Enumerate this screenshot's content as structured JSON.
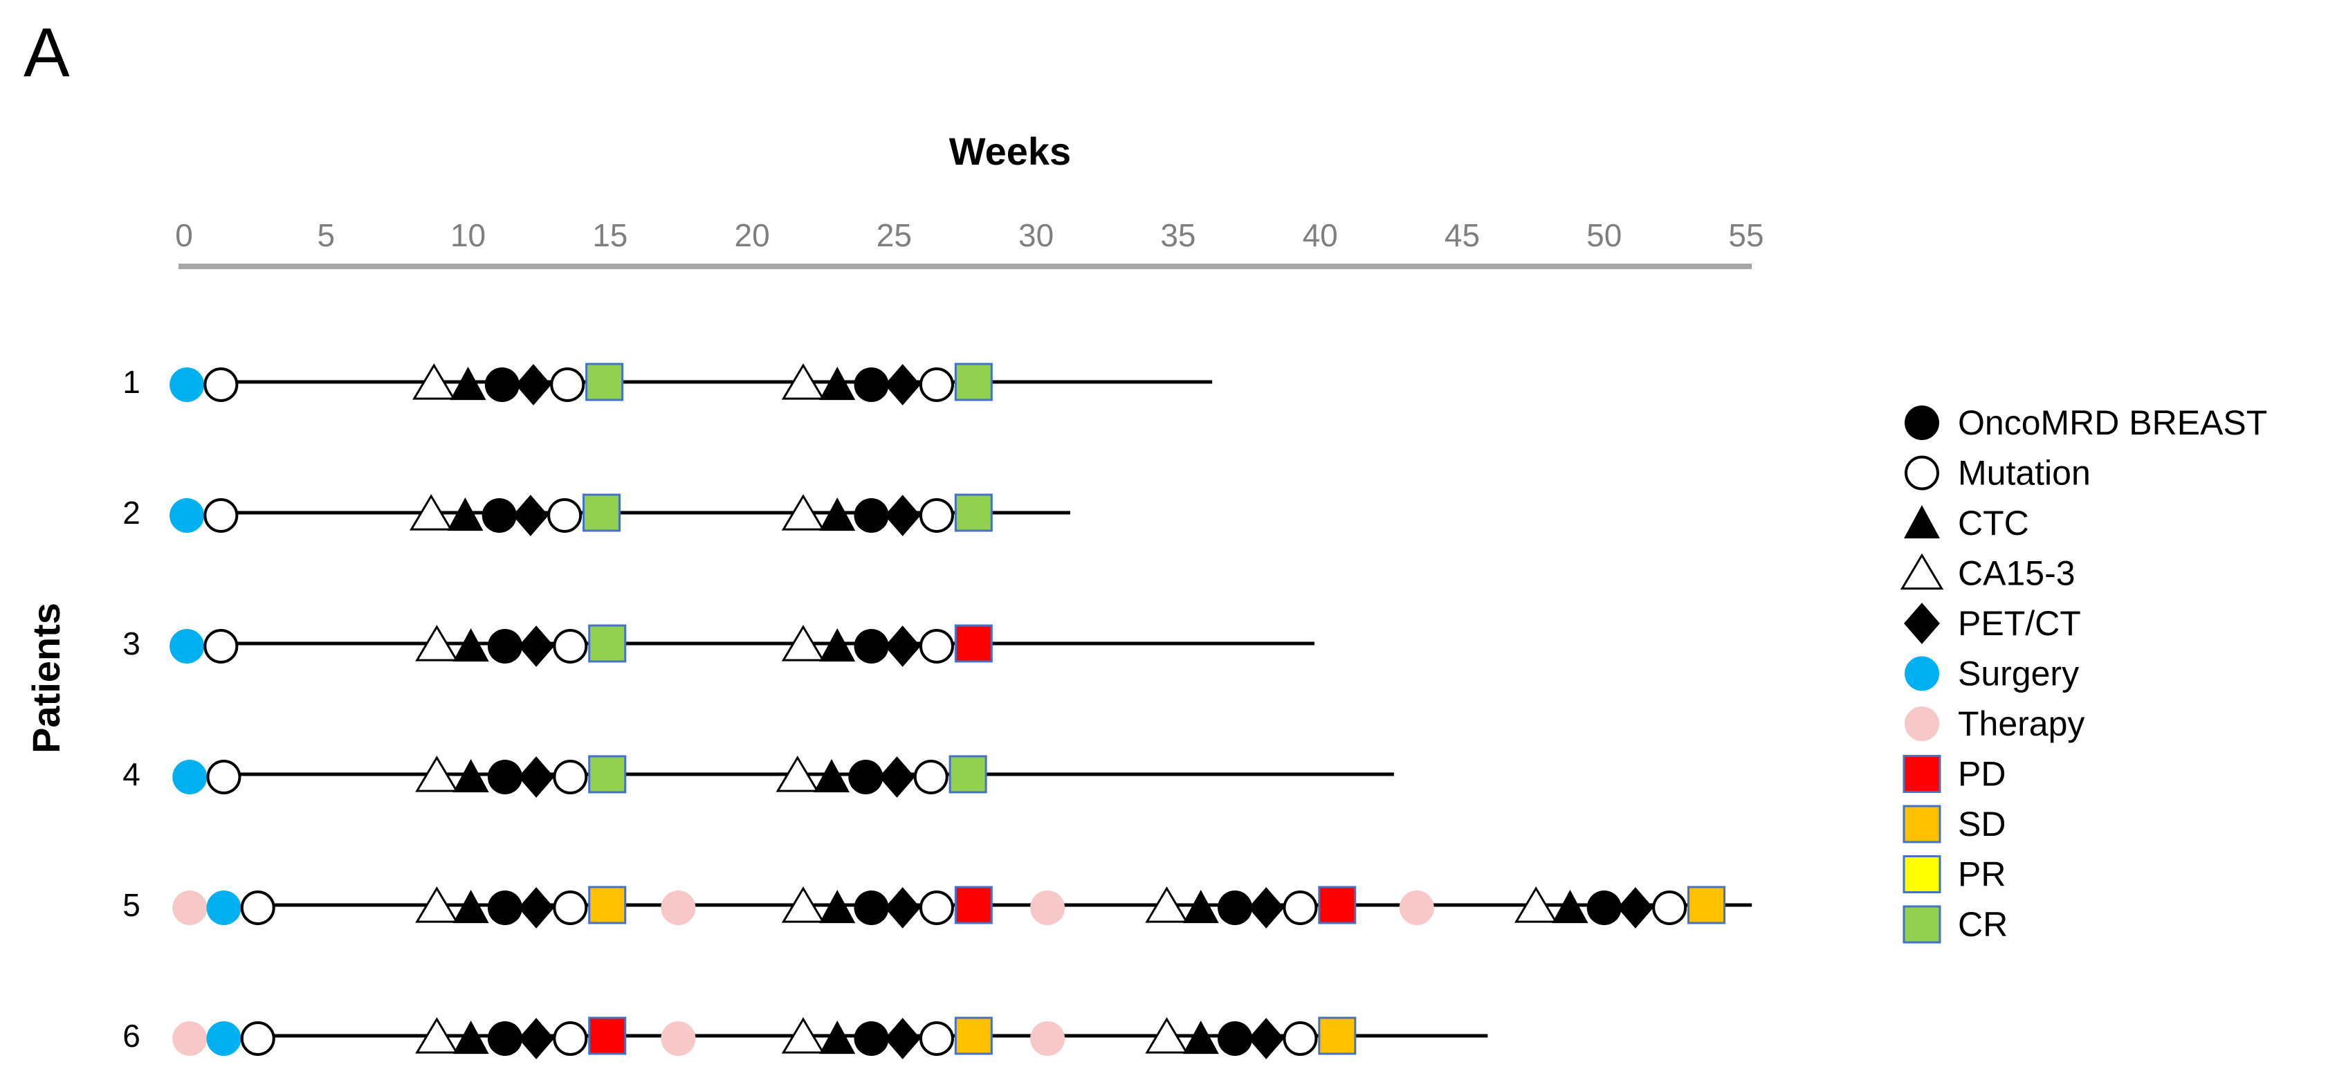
{
  "panel_label": "A",
  "chart_data": {
    "type": "scatter",
    "title": "",
    "xlabel": "Weeks",
    "ylabel": "Patients",
    "xlim": [
      0,
      55
    ],
    "x_ticks": [
      "0",
      "5",
      "10",
      "15",
      "20",
      "25",
      "30",
      "35",
      "40",
      "45",
      "50",
      "55"
    ],
    "x_axis_position": "top",
    "grid": false,
    "legend_position": "right",
    "colors": {
      "line": "#000000",
      "axis": "#a6a6a6",
      "tick_label": "#7f7f7f",
      "surgery": "#00b0f0",
      "therapy": "#f8c8c8",
      "PD": "#ff0000",
      "SD": "#ffc000",
      "PR": "#ffff00",
      "CR": "#92d050",
      "box_border": "#4472c4"
    },
    "legend": [
      {
        "key": "oncomrd",
        "shape": "filled-circle",
        "label": "OncoMRD BREAST"
      },
      {
        "key": "mutation",
        "shape": "open-circle",
        "label": "Mutation"
      },
      {
        "key": "ctc",
        "shape": "filled-triangle",
        "label": "CTC"
      },
      {
        "key": "ca153",
        "shape": "open-triangle",
        "label": "CA15-3"
      },
      {
        "key": "petct",
        "shape": "diamond",
        "label": "PET/CT"
      },
      {
        "key": "surgery",
        "shape": "blue-dot",
        "label": "Surgery"
      },
      {
        "key": "therapy",
        "shape": "pink-dot",
        "label": "Therapy"
      },
      {
        "key": "PD",
        "shape": "square",
        "label": "PD"
      },
      {
        "key": "SD",
        "shape": "square",
        "label": "SD"
      },
      {
        "key": "PR",
        "shape": "square",
        "label": "PR"
      },
      {
        "key": "CR",
        "shape": "square",
        "label": "CR"
      }
    ],
    "patients": [
      {
        "label": "1",
        "line_end": 36.2,
        "therapy": [],
        "surgery": 0.1,
        "mutation_start": 1.3,
        "assessments": [
          {
            "x": 8.8,
            "result": "CR"
          },
          {
            "x": 21.8,
            "result": "CR"
          }
        ]
      },
      {
        "label": "2",
        "line_end": 31.2,
        "therapy": [],
        "surgery": 0.1,
        "mutation_start": 1.3,
        "assessments": [
          {
            "x": 8.7,
            "result": "CR"
          },
          {
            "x": 21.8,
            "result": "CR"
          }
        ]
      },
      {
        "label": "3",
        "line_end": 39.8,
        "therapy": [],
        "surgery": 0.1,
        "mutation_start": 1.3,
        "assessments": [
          {
            "x": 8.9,
            "result": "CR"
          },
          {
            "x": 21.8,
            "result": "PD"
          }
        ]
      },
      {
        "label": "4",
        "line_end": 42.6,
        "therapy": [],
        "surgery": 0.2,
        "mutation_start": 1.4,
        "assessments": [
          {
            "x": 8.9,
            "result": "CR"
          },
          {
            "x": 21.6,
            "result": "CR"
          }
        ]
      },
      {
        "label": "5",
        "line_end": 55.2,
        "therapy": [
          0.2,
          17.4,
          30.4,
          43.4
        ],
        "surgery": 1.4,
        "mutation_start": 2.6,
        "assessments": [
          {
            "x": 8.9,
            "result": "SD"
          },
          {
            "x": 21.8,
            "result": "PD"
          },
          {
            "x": 34.6,
            "result": "PD"
          },
          {
            "x": 47.6,
            "result": "SD"
          }
        ]
      },
      {
        "label": "6",
        "line_end": 45.9,
        "therapy": [
          0.2,
          17.4,
          30.4
        ],
        "surgery": 1.4,
        "mutation_start": 2.6,
        "assessments": [
          {
            "x": 8.9,
            "result": "PD"
          },
          {
            "x": 21.8,
            "result": "SD"
          },
          {
            "x": 34.6,
            "result": "SD"
          }
        ]
      }
    ]
  }
}
